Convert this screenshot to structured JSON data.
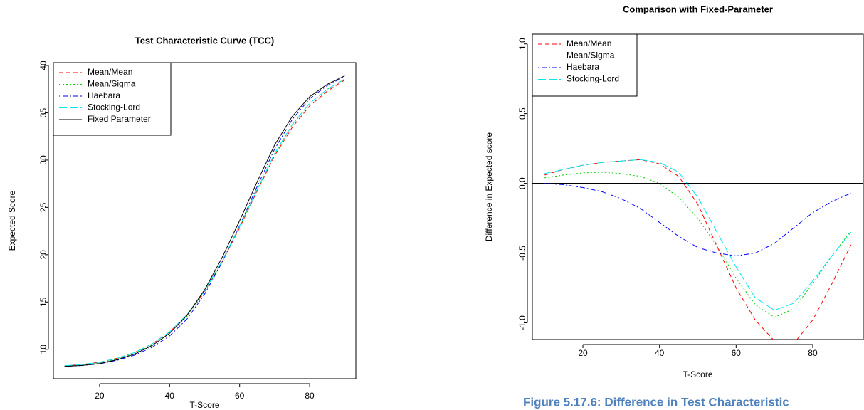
{
  "chart_data": [
    {
      "type": "line",
      "title": "Test Characteristic Curve (TCC)",
      "x_label": "T-Score",
      "y_label": "Expected Score",
      "x": [
        10,
        15,
        20,
        25,
        30,
        35,
        40,
        45,
        50,
        55,
        60,
        65,
        70,
        75,
        80,
        85,
        90
      ],
      "series": [
        {
          "name": "Mean/Mean",
          "color": "#ff0000",
          "linestyle": "dashed",
          "values": [
            8.26,
            8.4,
            8.63,
            9.05,
            9.66,
            10.57,
            11.84,
            13.65,
            16.15,
            19.25,
            22.85,
            26.72,
            30.47,
            33.45,
            35.72,
            37.28,
            38.46
          ]
        },
        {
          "name": "Mean/Sigma",
          "color": "#00cd00",
          "linestyle": "dotted",
          "values": [
            8.24,
            8.36,
            8.58,
            8.98,
            9.57,
            10.45,
            11.7,
            13.5,
            16.05,
            19.25,
            22.92,
            26.83,
            30.64,
            33.7,
            35.98,
            37.48,
            38.56
          ]
        },
        {
          "name": "Haebara",
          "color": "#0000ff",
          "linestyle": "dotdash",
          "values": [
            8.2,
            8.29,
            8.47,
            8.84,
            9.39,
            10.22,
            11.42,
            13.22,
            15.84,
            19.2,
            23.08,
            27.2,
            31.17,
            34.28,
            36.49,
            37.87,
            38.83
          ]
        },
        {
          "name": "Stocking-Lord",
          "color": "#00e5ee",
          "linestyle": "longdash",
          "values": [
            8.27,
            8.4,
            8.63,
            9.05,
            9.66,
            10.57,
            11.85,
            13.68,
            16.2,
            19.35,
            23.0,
            26.88,
            30.69,
            33.74,
            36.0,
            37.48,
            38.55
          ]
        },
        {
          "name": "Fixed Parameter",
          "color": "#000000",
          "linestyle": "solid",
          "values": [
            8.2,
            8.3,
            8.5,
            8.9,
            9.5,
            10.4,
            11.7,
            13.6,
            16.3,
            19.7,
            23.6,
            27.7,
            31.6,
            34.6,
            36.7,
            38.0,
            38.9
          ]
        }
      ],
      "xlim": [
        6.8,
        93.2
      ],
      "xticks": [
        20,
        40,
        60,
        80
      ],
      "ylim": [
        6.9,
        40.3
      ],
      "yticks": [
        10,
        15,
        20,
        25,
        30,
        35,
        40
      ],
      "legend": "top-left",
      "grid": false
    },
    {
      "type": "line",
      "title": "Comparison with Fixed-Parameter",
      "x_label": "T-Score",
      "y_label": "Difference in Expected score",
      "x": [
        10,
        15,
        20,
        25,
        30,
        35,
        40,
        45,
        50,
        55,
        60,
        65,
        70,
        75,
        80,
        85,
        90
      ],
      "series": [
        {
          "name": "Mean/Mean",
          "color": "#ff0000",
          "linestyle": "dashed",
          "values": [
            0.06,
            0.1,
            0.13,
            0.15,
            0.16,
            0.17,
            0.14,
            0.05,
            -0.15,
            -0.45,
            -0.75,
            -0.98,
            -1.13,
            -1.15,
            -0.98,
            -0.72,
            -0.44
          ]
        },
        {
          "name": "Mean/Sigma",
          "color": "#00cd00",
          "linestyle": "dotted",
          "values": [
            0.04,
            0.06,
            0.075,
            0.08,
            0.07,
            0.05,
            0.0,
            -0.1,
            -0.25,
            -0.45,
            -0.68,
            -0.87,
            -0.96,
            -0.9,
            -0.72,
            -0.52,
            -0.34
          ]
        },
        {
          "name": "Haebara",
          "color": "#0000ff",
          "linestyle": "dotdash",
          "values": [
            0.0,
            -0.01,
            -0.03,
            -0.06,
            -0.11,
            -0.18,
            -0.28,
            -0.38,
            -0.46,
            -0.5,
            -0.52,
            -0.5,
            -0.43,
            -0.32,
            -0.21,
            -0.13,
            -0.07
          ]
        },
        {
          "name": "Stocking-Lord",
          "color": "#00e5ee",
          "linestyle": "longdash",
          "values": [
            0.07,
            0.1,
            0.13,
            0.15,
            0.16,
            0.17,
            0.15,
            0.08,
            -0.1,
            -0.35,
            -0.6,
            -0.82,
            -0.91,
            -0.86,
            -0.7,
            -0.52,
            -0.35
          ]
        }
      ],
      "xlim": [
        6.8,
        93.2
      ],
      "xticks": [
        20,
        40,
        60,
        80
      ],
      "ylim": [
        -1.12,
        1.07
      ],
      "yticks": [
        {
          "value": -1,
          "label": "-1.0"
        },
        -0.5,
        {
          "value": 0,
          "label": "0.0"
        },
        0.5,
        {
          "value": 1,
          "label": "1.0"
        }
      ],
      "reference_line": 0,
      "legend": "top-left",
      "grid": false
    }
  ],
  "caption": "Figure 5.17.6: Difference in Test Characteristic"
}
